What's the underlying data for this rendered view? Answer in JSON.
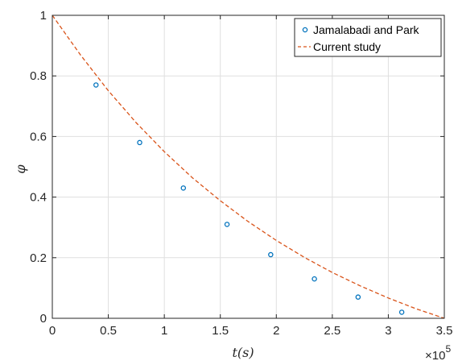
{
  "chart_data": {
    "type": "scatter",
    "xlabel": "t(s)",
    "ylabel": "φ",
    "x_multiplier": {
      "base": "×10",
      "exponent": "5"
    },
    "xlim": [
      0,
      350000
    ],
    "ylim": [
      0,
      1
    ],
    "xticks": [
      0,
      50000,
      100000,
      150000,
      200000,
      250000,
      300000,
      350000
    ],
    "xtick_labels": [
      "0",
      "0.5",
      "1",
      "1.5",
      "2",
      "2.5",
      "3",
      "3.5"
    ],
    "yticks": [
      0,
      0.2,
      0.4,
      0.6,
      0.8,
      1
    ],
    "ytick_labels": [
      "0",
      "0.2",
      "0.4",
      "0.6",
      "0.8",
      "1"
    ],
    "grid": true,
    "legend_position": "top-right",
    "series": [
      {
        "name": "Jamalabadi and Park",
        "kind": "markers",
        "color": "#0072BD",
        "x": [
          39000,
          78000,
          117000,
          156000,
          195000,
          234000,
          273000,
          312000
        ],
        "y": [
          0.77,
          0.58,
          0.43,
          0.31,
          0.21,
          0.13,
          0.07,
          0.02
        ]
      },
      {
        "name": "Current study",
        "kind": "dashed-line",
        "color": "#D95319",
        "x": [
          0,
          25000,
          50000,
          75000,
          100000,
          125000,
          150000,
          175000,
          200000,
          225000,
          250000,
          275000,
          300000,
          325000,
          350000
        ],
        "y": [
          1.0,
          0.87,
          0.751,
          0.645,
          0.55,
          0.464,
          0.388,
          0.319,
          0.257,
          0.201,
          0.151,
          0.107,
          0.067,
          0.031,
          0.0
        ]
      }
    ]
  }
}
